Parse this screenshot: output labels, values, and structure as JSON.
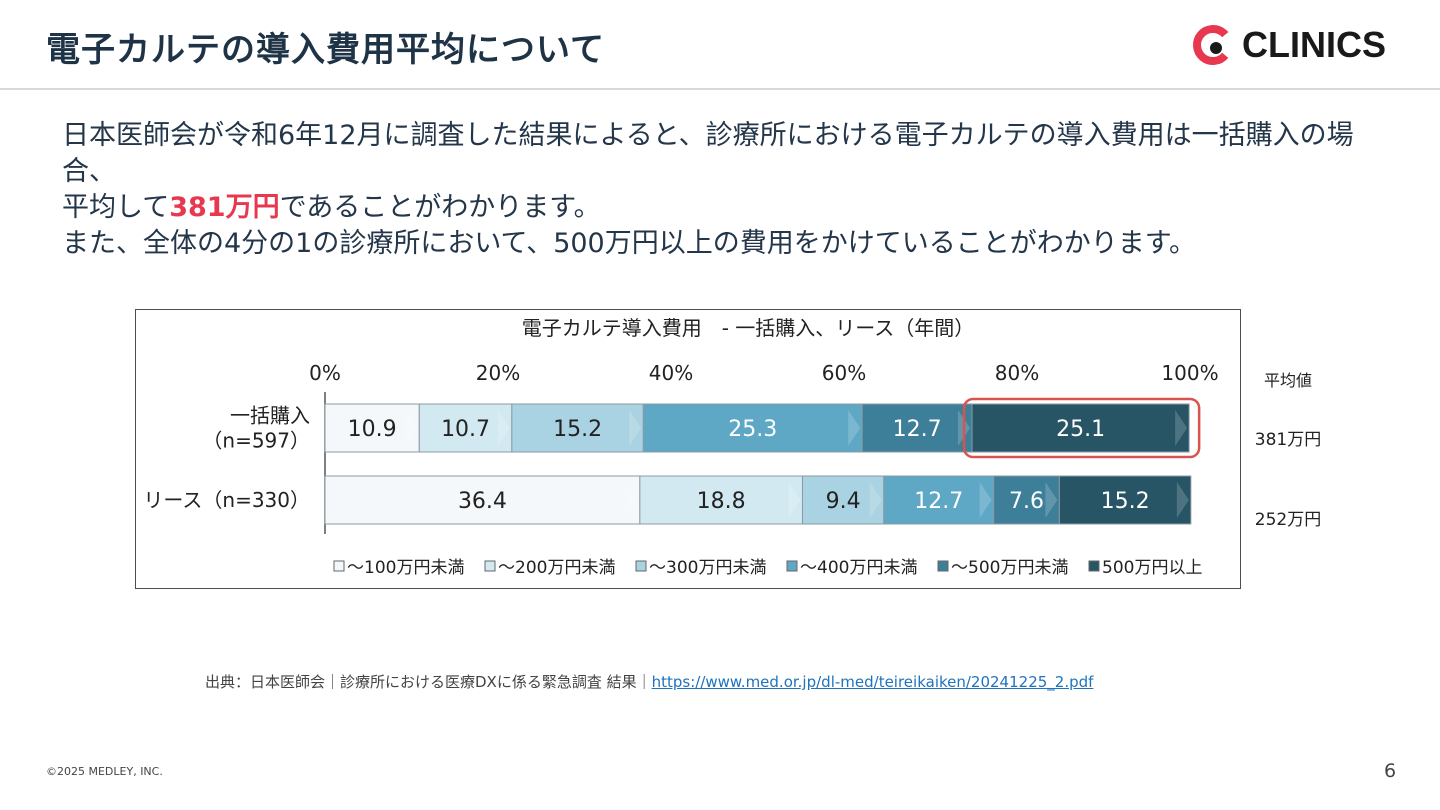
{
  "header": {
    "title": "電子カルテの導入費用平均について",
    "logo_text": "CLINICS"
  },
  "body": {
    "line1": "日本医師会が令和6年12月に調査した結果によると、診療所における電子カルテの導入費用は一括購入の場合、",
    "line2_pre": "平均して",
    "line2_highlight": "381万円",
    "line2_post": "であることがわかります。",
    "line3": "また、全体の4分の1の診療所において、500万円以上の費用をかけていることがわかります。"
  },
  "chart_data": {
    "type": "bar",
    "orientation": "horizontal-stacked-100",
    "title": "電子カルテ導入費用　- 一括購入、リース（年間）",
    "xticks": [
      "0%",
      "20%",
      "40%",
      "60%",
      "80%",
      "100%"
    ],
    "xlim": [
      0,
      100
    ],
    "categories": [
      "一括購入\n（n=597）",
      "リース（n=330）"
    ],
    "category_lines": [
      [
        "一括購入",
        "（n=597）"
      ],
      [
        "リース（n=330）"
      ]
    ],
    "series": [
      {
        "name": "～100万円未満",
        "values": [
          10.9,
          36.4
        ],
        "color": "#f4f8fa"
      },
      {
        "name": "～200万円未満",
        "values": [
          10.7,
          18.8
        ],
        "color": "#d3e9f2"
      },
      {
        "name": "～300万円未満",
        "values": [
          15.2,
          9.4
        ],
        "color": "#a9d2e2"
      },
      {
        "name": "～400万円未満",
        "values": [
          25.3,
          12.7
        ],
        "color": "#5ea8c6"
      },
      {
        "name": "～500万円未満",
        "values": [
          12.7,
          7.6
        ],
        "color": "#3d7f99"
      },
      {
        "name": "500万円以上",
        "values": [
          25.1,
          15.2
        ],
        "color": "#275566"
      }
    ],
    "average_header": "平均値",
    "averages": [
      "381万円",
      "252万円"
    ],
    "legend_position": "bottom",
    "highlight": {
      "category_index": 0,
      "series_index": 5,
      "color": "#d9534f"
    }
  },
  "footer": {
    "source_label": "出典：日本医師会｜診療所における医療DXに係る緊急調査 結果｜",
    "source_url": "https://www.med.or.jp/dl-med/teireikaiken/20241225_2.pdf",
    "copyright": "©2025 MEDLEY, INC.",
    "page_number": "6"
  }
}
